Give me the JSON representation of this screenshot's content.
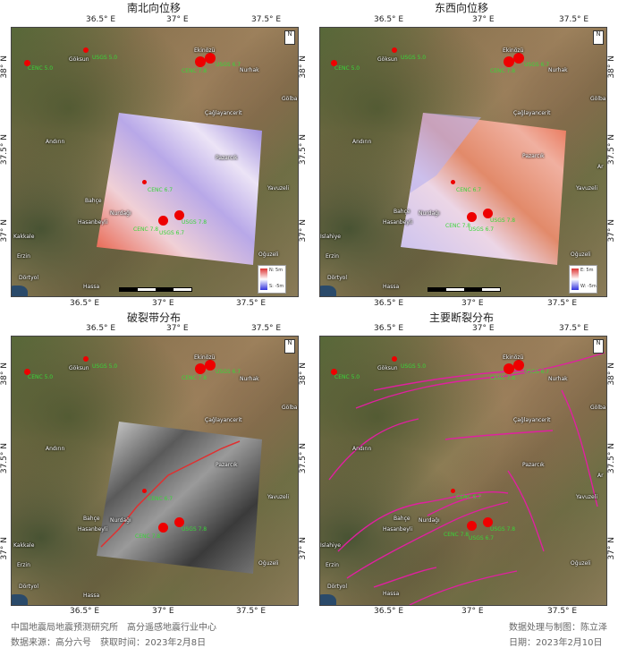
{
  "panels": [
    {
      "title": "南北向位移",
      "legend_top": "N: 5m",
      "legend_bottom": "S: -5m"
    },
    {
      "title": "东西向位移",
      "legend_top": "E: 5m",
      "legend_bottom": "W: -5m"
    },
    {
      "title": "破裂带分布"
    },
    {
      "title": "主要断裂分布"
    }
  ],
  "axes": {
    "lon_ticks": [
      "36.5° E",
      "37° E",
      "37.5° E"
    ],
    "lat_ticks": [
      "38° N",
      "37.5° N",
      "37° N"
    ]
  },
  "places": [
    "Göksun",
    "Ekinözü",
    "Nurhak",
    "Çağlayancerit",
    "Gölba",
    "Andırın",
    "Pazarcık",
    "Ar",
    "Yavuzeli",
    "Bahçe",
    "Nurdağı",
    "Hasanbeyli",
    "Islahiye",
    "Kakkale",
    "Oğuzeli",
    "Erzin",
    "Hassa",
    "Dörtyol",
    "ylü"
  ],
  "quake_labels": {
    "q1": "CENC 5.0",
    "q2": "USGS 5.0",
    "q3": "CENC 7.8",
    "q4": "USGS 6.7",
    "q5": "CENC 6.7",
    "q6": "CENC 7.8",
    "q7": "USGS 7.8",
    "q8": "USGS 6.7"
  },
  "north_label": "N",
  "footer": {
    "org": "中国地震局地震预测研究所　高分遥感地震行业中心",
    "source": "数据来源：高分六号　获取时间：2023年2月8日",
    "processor": "数据处理与制图：陈立泽",
    "date": "日期：2023年2月10日"
  }
}
